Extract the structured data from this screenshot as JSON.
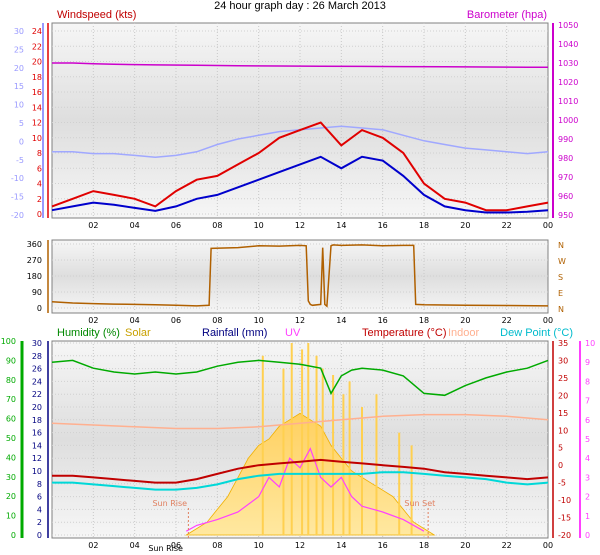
{
  "title": "24 hour graph day : 26 March 2013",
  "colors": {
    "windspeed": "#e00000",
    "windavg": "#0000cc",
    "barometer": "#cc00cc",
    "winddir": "#b06000",
    "humidity": "#00aa00",
    "solar": "#ffc000",
    "rainfall": "#000080",
    "uv": "#ff40ff",
    "temperature": "#c00000",
    "indoor": "#ffb090",
    "dewpoint": "#00d8d8",
    "leftaxis": "#9999ff"
  },
  "chart_data": [
    {
      "type": "line",
      "name": "wind-barometer",
      "legend": {
        "windspeed": "Windspeed (kts)",
        "barometer": "Barometer (hpa)"
      },
      "x_ticks": [
        "02",
        "04",
        "06",
        "08",
        "10",
        "12",
        "14",
        "16",
        "18",
        "20",
        "22",
        "00"
      ],
      "x_range_hours": [
        0,
        24
      ],
      "windspeed_axis": {
        "ticks": [
          "24",
          "22",
          "20",
          "18",
          "16",
          "14",
          "12",
          "10",
          "8",
          "6",
          "4",
          "2",
          "0"
        ],
        "range": [
          0,
          24
        ]
      },
      "left_axis": {
        "ticks": [
          "30",
          "25",
          "20",
          "15",
          "10",
          "5",
          "0",
          "-5",
          "-10",
          "-15",
          "-20"
        ],
        "range": [
          -20,
          30
        ]
      },
      "barometer_axis": {
        "ticks": [
          "1050",
          "1040",
          "1030",
          "1020",
          "1010",
          "1000",
          "990",
          "980",
          "970",
          "960",
          "950"
        ],
        "range": [
          950,
          1050
        ]
      },
      "series": [
        {
          "key": "barometer",
          "x": [
            0,
            1,
            2,
            3,
            5,
            7,
            9,
            11,
            13,
            15,
            17,
            19,
            21,
            23,
            24
          ],
          "values": [
            1030,
            1030,
            1029.6,
            1029.3,
            1029,
            1028.8,
            1028.6,
            1028.4,
            1028.3,
            1028.2,
            1028.1,
            1028,
            1027.9,
            1027.8,
            1027.8
          ]
        },
        {
          "key": "windspeed",
          "x": [
            0,
            1,
            2,
            3,
            4,
            5,
            6,
            7,
            8,
            9,
            10,
            11,
            12,
            13,
            14,
            15,
            16,
            17,
            18,
            19,
            20,
            21,
            22,
            23,
            24
          ],
          "values": [
            1,
            2,
            3,
            2.5,
            2,
            1,
            3,
            4.5,
            5,
            6.5,
            8,
            10,
            11,
            12,
            9,
            11,
            10,
            8,
            4,
            2,
            1.5,
            0.5,
            0.5,
            1,
            1.5
          ]
        },
        {
          "key": "windavg",
          "x": [
            0,
            1,
            2,
            3,
            4,
            5,
            6,
            7,
            8,
            9,
            10,
            11,
            12,
            13,
            14,
            15,
            16,
            17,
            18,
            19,
            20,
            21,
            22,
            23,
            24
          ],
          "values": [
            0.5,
            1,
            1.5,
            1.2,
            0.8,
            0.4,
            1,
            2,
            2.5,
            3.5,
            4.5,
            5.5,
            6.5,
            7.5,
            6,
            7.5,
            7,
            5,
            2.5,
            1,
            0.5,
            0.2,
            0.2,
            0.3,
            0.5
          ]
        },
        {
          "key": "tempfaint",
          "x": [
            0,
            1,
            2,
            3,
            4,
            5,
            6,
            7,
            8,
            9,
            10,
            11,
            12,
            13,
            14,
            15,
            16,
            17,
            18,
            19,
            20,
            21,
            22,
            23,
            24
          ],
          "values": [
            -3,
            -3,
            -3.5,
            -3.5,
            -4,
            -4.5,
            -4,
            -3,
            -1,
            0.5,
            1.5,
            2.5,
            3,
            3.5,
            4,
            3.5,
            3,
            1.5,
            0,
            -1,
            -2,
            -2.5,
            -3,
            -3.5,
            -3
          ]
        }
      ]
    },
    {
      "type": "line",
      "name": "wind-direction",
      "x_ticks": [
        "02",
        "04",
        "06",
        "08",
        "10",
        "12",
        "14",
        "16",
        "18",
        "20",
        "22",
        "00"
      ],
      "y_ticks": [
        "360",
        "270",
        "180",
        "90",
        "0"
      ],
      "y_range": [
        0,
        360
      ],
      "compass": [
        "N",
        "W",
        "S",
        "E",
        "N"
      ],
      "series": [
        {
          "key": "winddir",
          "x": [
            0,
            1,
            2,
            3,
            4,
            5,
            6,
            7,
            7.6,
            7.7,
            9,
            10,
            11,
            12,
            12.3,
            12.4,
            12.5,
            12.6,
            13.0,
            13.1,
            13.2,
            13.3,
            13.5,
            13.6,
            14,
            15,
            16,
            17,
            17.5,
            17.6,
            18,
            20,
            22,
            24
          ],
          "values": [
            35,
            28,
            25,
            22,
            20,
            18,
            15,
            12,
            15,
            335,
            340,
            350,
            348,
            352,
            350,
            40,
            20,
            15,
            20,
            340,
            20,
            10,
            350,
            355,
            352,
            355,
            350,
            352,
            352,
            20,
            18,
            15,
            14,
            12
          ]
        }
      ]
    },
    {
      "type": "line",
      "name": "humidity-temperature",
      "legend": {
        "humidity": "Humidity (%)",
        "solar": "Solar",
        "rainfall": "Rainfall (mm)",
        "uv": "UV",
        "temperature": "Temperature (°C)",
        "indoor": "Indoor",
        "dewpoint": "Dew Point (°C)"
      },
      "annotations": {
        "sunrise": "Sun Rise",
        "sunset": "Sun Set",
        "sunrise_tick": "Sun Rise"
      },
      "x_ticks": [
        "02",
        "04",
        "06",
        "08",
        "10",
        "12",
        "14",
        "16",
        "18",
        "20",
        "22",
        "00"
      ],
      "humidity_axis": {
        "ticks": [
          "100",
          "90",
          "80",
          "70",
          "60",
          "50",
          "40",
          "30",
          "20",
          "10",
          "0"
        ],
        "range": [
          0,
          100
        ]
      },
      "rainfall_axis": {
        "ticks": [
          "30",
          "28",
          "26",
          "24",
          "22",
          "20",
          "18",
          "16",
          "14",
          "12",
          "10",
          "8",
          "6",
          "4",
          "2",
          "0"
        ],
        "range": [
          0,
          30
        ]
      },
      "temperature_axis": {
        "ticks": [
          "35",
          "30",
          "25",
          "20",
          "15",
          "10",
          "5",
          "0",
          "-5",
          "-10",
          "-15",
          "-20"
        ],
        "range": [
          -20,
          35
        ]
      },
      "uv_axis": {
        "ticks": [
          "10",
          "9",
          "8",
          "7",
          "6",
          "5",
          "4",
          "3",
          "2",
          "1",
          "0"
        ],
        "range": [
          0,
          10
        ]
      },
      "series": [
        {
          "key": "humidity",
          "x": [
            0,
            1,
            2,
            3,
            4,
            5,
            6,
            7,
            8,
            9,
            10,
            11,
            12,
            13,
            13.5,
            14,
            14.5,
            15,
            16,
            17,
            18,
            19,
            20,
            21,
            22,
            23,
            24
          ],
          "values": [
            89,
            90,
            86,
            84,
            83,
            84,
            83,
            84,
            87,
            89,
            90,
            89,
            88,
            86,
            73,
            82,
            85,
            86,
            85,
            82,
            73,
            72,
            77,
            81,
            84,
            86,
            90
          ]
        },
        {
          "key": "indoor",
          "x": [
            0,
            2,
            4,
            6,
            8,
            10,
            12,
            14,
            16,
            18,
            20,
            22,
            24
          ],
          "values": [
            12,
            11.5,
            11,
            10.5,
            10.5,
            11,
            12,
            13,
            14,
            14.5,
            14.5,
            14,
            13
          ]
        },
        {
          "key": "temperature",
          "x": [
            0,
            1,
            2,
            3,
            4,
            5,
            6,
            7,
            8,
            9,
            10,
            11,
            12,
            13,
            14,
            15,
            16,
            17,
            18,
            19,
            20,
            21,
            22,
            23,
            24
          ],
          "values": [
            -3,
            -3,
            -3.5,
            -4,
            -4.5,
            -5,
            -5,
            -4,
            -2.5,
            -1,
            0,
            0.5,
            1,
            1.5,
            1,
            0.5,
            0,
            -0.5,
            -1,
            -2,
            -2.5,
            -3,
            -3.5,
            -4,
            -3.5
          ]
        },
        {
          "key": "dewpoint",
          "x": [
            0,
            1,
            2,
            3,
            4,
            5,
            6,
            7,
            8,
            9,
            10,
            11,
            12,
            13,
            14,
            15,
            16,
            17,
            18,
            19,
            20,
            21,
            22,
            23,
            24
          ],
          "values": [
            -5,
            -5,
            -5.5,
            -6,
            -6.5,
            -7,
            -7,
            -6.5,
            -5.5,
            -4,
            -3,
            -2.5,
            -2.5,
            -2.5,
            -2.5,
            -2.5,
            -2,
            -2,
            -2.5,
            -3,
            -3.5,
            -4,
            -5,
            -5.5,
            -5
          ]
        },
        {
          "key": "solar",
          "x": [
            6.5,
            7,
            7.5,
            8,
            8.5,
            9,
            9.5,
            10,
            10.5,
            11,
            11.5,
            12,
            12.5,
            13,
            13.5,
            14,
            14.5,
            15,
            15.5,
            16,
            16.5,
            17,
            17.5,
            18,
            18.5
          ],
          "values": [
            0,
            1,
            2,
            4,
            6,
            9,
            12,
            14,
            15,
            17,
            18,
            19,
            18,
            17,
            14,
            12,
            10,
            9,
            8,
            7,
            6,
            4,
            2,
            1,
            0
          ]
        },
        {
          "key": "solar_peaks",
          "x": [
            10.2,
            11.2,
            11.6,
            12.1,
            12.4,
            12.8,
            13.1,
            13.6,
            14.1,
            14.4,
            15.0,
            15.7,
            16.8,
            17.4
          ],
          "values": [
            28,
            26,
            30,
            29,
            30,
            28,
            26,
            25,
            22,
            24,
            20,
            22,
            16,
            14
          ]
        },
        {
          "key": "uv",
          "x": [
            6.5,
            7,
            8,
            9,
            10,
            10.5,
            11,
            11.5,
            12,
            12.5,
            13,
            13.5,
            14,
            14.5,
            15,
            16,
            17,
            18
          ],
          "values": [
            0.2,
            0.5,
            0.8,
            1.2,
            2,
            3,
            2.5,
            4,
            3.5,
            4.5,
            3,
            2.5,
            3,
            2,
            1.5,
            1.2,
            0.8,
            0.2
          ]
        }
      ]
    }
  ]
}
